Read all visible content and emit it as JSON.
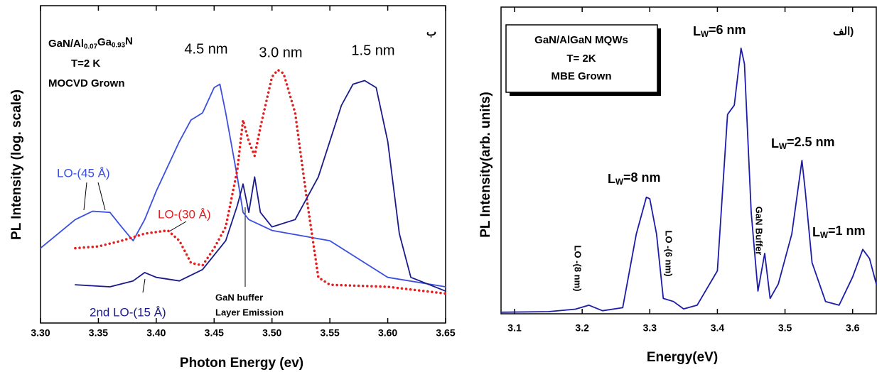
{
  "chart_data": [
    {
      "type": "line",
      "x_label": "Photon Energy (ev)",
      "y_label": "PL Intensity (log. scale)",
      "xlim": [
        3.3,
        3.65
      ],
      "xticks": [
        {
          "value": 3.3,
          "label": "3.30"
        },
        3.35,
        {
          "value": 3.4,
          "label": "3.40"
        },
        3.45,
        {
          "value": 3.5,
          "label": "3.50"
        },
        3.55,
        {
          "value": 3.6,
          "label": "3.60"
        },
        3.65
      ],
      "ylim": [
        1,
        1000
      ],
      "log_y": true,
      "series": [
        {
          "name": "4.5 nm",
          "color": "#3a4fe0",
          "x": [
            3.3,
            3.33,
            3.345,
            3.36,
            3.37,
            3.38,
            3.39,
            3.4,
            3.42,
            3.43,
            3.44,
            3.45,
            3.455,
            3.46,
            3.47,
            3.475,
            3.48,
            3.5,
            3.55,
            3.6,
            3.65
          ],
          "values": [
            5.1,
            9.5,
            11.4,
            11.1,
            8.1,
            6.0,
            9.5,
            17.7,
            52,
            83,
            97,
            168,
            181,
            97,
            24,
            11.1,
            9.5,
            7.5,
            6.0,
            2.7,
            2.2
          ]
        },
        {
          "name": "3.0 nm",
          "color": "#e02020",
          "x": [
            3.33,
            3.35,
            3.37,
            3.39,
            3.41,
            3.42,
            3.43,
            3.44,
            3.45,
            3.46,
            3.47,
            3.475,
            3.48,
            3.485,
            3.49,
            3.5,
            3.505,
            3.51,
            3.52,
            3.53,
            3.54,
            3.55,
            3.6,
            3.65
          ],
          "values": [
            5.1,
            5.3,
            6.0,
            7.0,
            7.5,
            6.0,
            3.7,
            3.5,
            5.1,
            8.1,
            28,
            83,
            52,
            38,
            71,
            212,
            247,
            229,
            97,
            15,
            2.7,
            2.3,
            2.2,
            1.9
          ]
        },
        {
          "name": "1.5 nm",
          "color": "#1a1a8c",
          "x": [
            3.33,
            3.36,
            3.38,
            3.39,
            3.4,
            3.42,
            3.44,
            3.46,
            3.47,
            3.475,
            3.48,
            3.485,
            3.49,
            3.5,
            3.52,
            3.54,
            3.56,
            3.57,
            3.58,
            3.59,
            3.6,
            3.61,
            3.62,
            3.65
          ],
          "values": [
            2.3,
            2.2,
            2.5,
            3.0,
            2.7,
            2.5,
            3.2,
            6.0,
            12.9,
            20.6,
            11.1,
            24,
            11.1,
            8.1,
            9.5,
            24,
            114,
            181,
            196,
            168,
            52,
            7.0,
            2.7,
            2.0
          ]
        }
      ],
      "annotations": [
        "ب",
        [
          "GaN/Al",
          "0.07",
          "Ga",
          "0.93",
          "N"
        ],
        "T=2 K",
        "MOCVD Grown",
        "LO-(45 Å)",
        "LO-(30 Å)",
        "2nd LO-(15 Å)",
        "GaN buffer",
        "Layer Emission"
      ]
    },
    {
      "type": "line",
      "x_label": "Energy(eV)",
      "y_label": "PL Intensity(arb. units)",
      "xlim": [
        3.08,
        3.635
      ],
      "xticks": [
        3.1,
        3.2,
        3.3,
        3.4,
        3.5,
        3.6
      ],
      "ylim": [
        0,
        100
      ],
      "series": [
        {
          "color": "#1c1ca8",
          "x": [
            3.08,
            3.15,
            3.19,
            3.21,
            3.23,
            3.26,
            3.28,
            3.295,
            3.3,
            3.31,
            3.32,
            3.335,
            3.35,
            3.37,
            3.4,
            3.415,
            3.425,
            3.435,
            3.44,
            3.45,
            3.46,
            3.47,
            3.478,
            3.49,
            3.51,
            3.525,
            3.53,
            3.54,
            3.56,
            3.58,
            3.6,
            3.615,
            3.625,
            3.635
          ],
          "values": [
            0.5,
            0.7,
            1.5,
            2.8,
            1,
            2,
            26,
            38,
            37.5,
            26,
            5,
            4,
            1.6,
            2.8,
            14,
            65,
            68,
            86.6,
            81.5,
            33,
            7.4,
            19.7,
            5,
            9.7,
            26,
            50,
            40,
            16.7,
            4,
            2.8,
            12,
            21,
            18,
            9.7
          ]
        }
      ],
      "annotations": [
        "GaN/AlGaN MQWs",
        "T= 2K",
        "MBE Grown",
        [
          "L",
          "W",
          "=6 nm"
        ],
        "الف)",
        [
          "L",
          "W",
          "=8 nm"
        ],
        [
          "L",
          "W",
          "=2.5 nm"
        ],
        [
          "L",
          "W",
          "=1 nm"
        ],
        "GaN Buffer",
        "LO -(8 nm)",
        "LO -(6 nm)"
      ]
    }
  ]
}
